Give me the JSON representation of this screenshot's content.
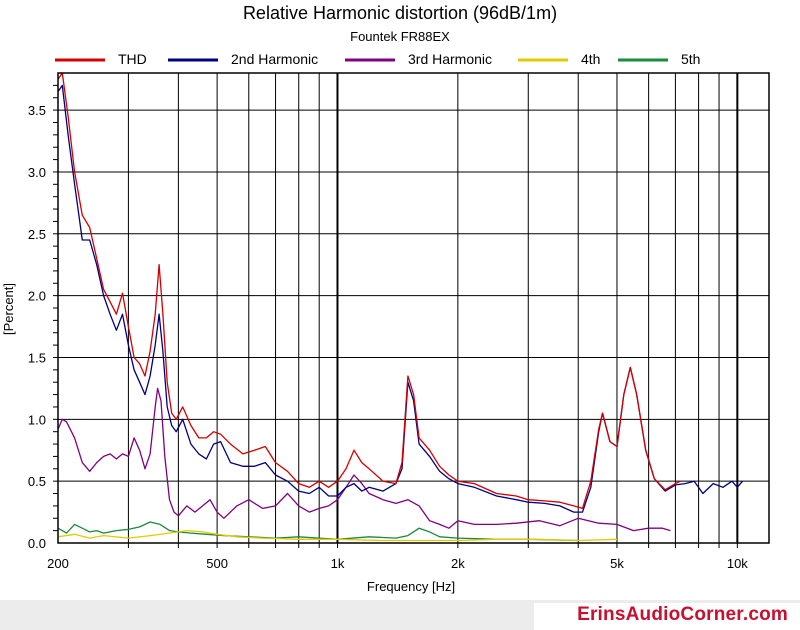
{
  "chart_data": {
    "type": "line",
    "title": "Relative Harmonic distortion (96dB/1m)",
    "subtitle": "Fountek FR88EX",
    "xlabel": "Frequency [Hz]",
    "ylabel": "[Percent]",
    "xscale": "log",
    "xlim": [
      200,
      12000
    ],
    "ylim": [
      0,
      3.8
    ],
    "grid": true,
    "legend_position": "top",
    "x_tick_labels": [
      {
        "value": 200,
        "label": "200"
      },
      {
        "value": 500,
        "label": "500"
      },
      {
        "value": 1000,
        "label": "1k"
      },
      {
        "value": 2000,
        "label": "2k"
      },
      {
        "value": 5000,
        "label": "5k"
      },
      {
        "value": 10000,
        "label": "10k"
      }
    ],
    "y_tick_labels": [
      {
        "value": 0.0,
        "label": "0.0"
      },
      {
        "value": 0.5,
        "label": "0.5"
      },
      {
        "value": 1.0,
        "label": "1.0"
      },
      {
        "value": 1.5,
        "label": "1.5"
      },
      {
        "value": 2.0,
        "label": "2.0"
      },
      {
        "value": 2.5,
        "label": "2.5"
      },
      {
        "value": 3.0,
        "label": "3.0"
      },
      {
        "value": 3.5,
        "label": "3.5"
      }
    ],
    "series": [
      {
        "name": "THD",
        "color": "#d40000",
        "points": [
          [
            200,
            3.75
          ],
          [
            205,
            3.8
          ],
          [
            212,
            3.45
          ],
          [
            220,
            3.0
          ],
          [
            230,
            2.65
          ],
          [
            240,
            2.55
          ],
          [
            250,
            2.3
          ],
          [
            260,
            2.05
          ],
          [
            270,
            1.95
          ],
          [
            280,
            1.85
          ],
          [
            290,
            2.02
          ],
          [
            300,
            1.75
          ],
          [
            310,
            1.5
          ],
          [
            320,
            1.45
          ],
          [
            330,
            1.35
          ],
          [
            340,
            1.55
          ],
          [
            350,
            1.85
          ],
          [
            358,
            2.25
          ],
          [
            366,
            1.85
          ],
          [
            375,
            1.3
          ],
          [
            385,
            1.05
          ],
          [
            395,
            1.0
          ],
          [
            410,
            1.1
          ],
          [
            430,
            0.95
          ],
          [
            450,
            0.85
          ],
          [
            470,
            0.85
          ],
          [
            490,
            0.9
          ],
          [
            510,
            0.88
          ],
          [
            540,
            0.8
          ],
          [
            580,
            0.72
          ],
          [
            620,
            0.75
          ],
          [
            660,
            0.78
          ],
          [
            700,
            0.65
          ],
          [
            750,
            0.58
          ],
          [
            800,
            0.48
          ],
          [
            850,
            0.45
          ],
          [
            900,
            0.5
          ],
          [
            950,
            0.45
          ],
          [
            1000,
            0.5
          ],
          [
            1050,
            0.6
          ],
          [
            1100,
            0.75
          ],
          [
            1150,
            0.65
          ],
          [
            1200,
            0.6
          ],
          [
            1300,
            0.5
          ],
          [
            1400,
            0.48
          ],
          [
            1450,
            0.65
          ],
          [
            1500,
            1.35
          ],
          [
            1550,
            1.2
          ],
          [
            1600,
            0.85
          ],
          [
            1700,
            0.75
          ],
          [
            1800,
            0.62
          ],
          [
            1900,
            0.55
          ],
          [
            2000,
            0.5
          ],
          [
            2200,
            0.48
          ],
          [
            2500,
            0.4
          ],
          [
            2800,
            0.38
          ],
          [
            3000,
            0.35
          ],
          [
            3300,
            0.34
          ],
          [
            3600,
            0.33
          ],
          [
            3900,
            0.3
          ],
          [
            4100,
            0.28
          ],
          [
            4300,
            0.5
          ],
          [
            4500,
            0.92
          ],
          [
            4600,
            1.05
          ],
          [
            4800,
            0.82
          ],
          [
            5000,
            0.78
          ],
          [
            5200,
            1.2
          ],
          [
            5400,
            1.42
          ],
          [
            5600,
            1.2
          ],
          [
            5900,
            0.75
          ],
          [
            6200,
            0.52
          ],
          [
            6600,
            0.43
          ],
          [
            7000,
            0.48
          ],
          [
            7200,
            0.5
          ]
        ]
      },
      {
        "name": "2nd Harmonic",
        "color": "#000080",
        "points": [
          [
            200,
            3.65
          ],
          [
            205,
            3.7
          ],
          [
            212,
            3.3
          ],
          [
            220,
            2.9
          ],
          [
            230,
            2.45
          ],
          [
            240,
            2.45
          ],
          [
            250,
            2.25
          ],
          [
            260,
            2.0
          ],
          [
            270,
            1.85
          ],
          [
            280,
            1.72
          ],
          [
            290,
            1.85
          ],
          [
            300,
            1.6
          ],
          [
            310,
            1.4
          ],
          [
            320,
            1.3
          ],
          [
            330,
            1.2
          ],
          [
            340,
            1.35
          ],
          [
            350,
            1.6
          ],
          [
            358,
            1.85
          ],
          [
            366,
            1.55
          ],
          [
            375,
            1.1
          ],
          [
            385,
            0.95
          ],
          [
            395,
            0.9
          ],
          [
            410,
            1.0
          ],
          [
            430,
            0.8
          ],
          [
            450,
            0.72
          ],
          [
            470,
            0.68
          ],
          [
            490,
            0.8
          ],
          [
            510,
            0.82
          ],
          [
            540,
            0.65
          ],
          [
            580,
            0.62
          ],
          [
            620,
            0.62
          ],
          [
            660,
            0.65
          ],
          [
            700,
            0.55
          ],
          [
            750,
            0.5
          ],
          [
            800,
            0.42
          ],
          [
            850,
            0.4
          ],
          [
            900,
            0.45
          ],
          [
            950,
            0.38
          ],
          [
            1000,
            0.38
          ],
          [
            1050,
            0.45
          ],
          [
            1100,
            0.48
          ],
          [
            1150,
            0.42
          ],
          [
            1200,
            0.45
          ],
          [
            1300,
            0.42
          ],
          [
            1400,
            0.48
          ],
          [
            1450,
            0.6
          ],
          [
            1500,
            1.3
          ],
          [
            1550,
            1.15
          ],
          [
            1600,
            0.8
          ],
          [
            1700,
            0.7
          ],
          [
            1800,
            0.58
          ],
          [
            1900,
            0.52
          ],
          [
            2000,
            0.48
          ],
          [
            2200,
            0.45
          ],
          [
            2500,
            0.38
          ],
          [
            2800,
            0.35
          ],
          [
            3000,
            0.33
          ],
          [
            3300,
            0.32
          ],
          [
            3600,
            0.3
          ],
          [
            3900,
            0.25
          ],
          [
            4100,
            0.25
          ],
          [
            4300,
            0.45
          ],
          [
            4500,
            0.9
          ],
          [
            4600,
            1.05
          ],
          [
            4800,
            0.82
          ],
          [
            5000,
            0.78
          ],
          [
            5200,
            1.2
          ],
          [
            5400,
            1.42
          ],
          [
            5600,
            1.2
          ],
          [
            5900,
            0.75
          ],
          [
            6200,
            0.52
          ],
          [
            6600,
            0.42
          ],
          [
            7000,
            0.47
          ],
          [
            7400,
            0.48
          ],
          [
            7800,
            0.5
          ],
          [
            8200,
            0.4
          ],
          [
            8700,
            0.48
          ],
          [
            9200,
            0.45
          ],
          [
            9700,
            0.5
          ],
          [
            10000,
            0.45
          ],
          [
            10300,
            0.5
          ]
        ]
      },
      {
        "name": "3rd Harmonic",
        "color": "#800080",
        "points": [
          [
            200,
            0.92
          ],
          [
            205,
            1.0
          ],
          [
            210,
            0.98
          ],
          [
            220,
            0.85
          ],
          [
            230,
            0.65
          ],
          [
            240,
            0.58
          ],
          [
            250,
            0.65
          ],
          [
            260,
            0.7
          ],
          [
            270,
            0.72
          ],
          [
            280,
            0.68
          ],
          [
            290,
            0.72
          ],
          [
            300,
            0.7
          ],
          [
            310,
            0.85
          ],
          [
            320,
            0.75
          ],
          [
            330,
            0.6
          ],
          [
            340,
            0.72
          ],
          [
            350,
            1.1
          ],
          [
            355,
            1.25
          ],
          [
            362,
            1.15
          ],
          [
            370,
            0.7
          ],
          [
            380,
            0.35
          ],
          [
            390,
            0.25
          ],
          [
            400,
            0.22
          ],
          [
            420,
            0.3
          ],
          [
            440,
            0.25
          ],
          [
            460,
            0.3
          ],
          [
            480,
            0.35
          ],
          [
            500,
            0.25
          ],
          [
            520,
            0.2
          ],
          [
            560,
            0.3
          ],
          [
            600,
            0.35
          ],
          [
            650,
            0.28
          ],
          [
            700,
            0.3
          ],
          [
            750,
            0.4
          ],
          [
            800,
            0.3
          ],
          [
            850,
            0.25
          ],
          [
            900,
            0.28
          ],
          [
            950,
            0.3
          ],
          [
            1000,
            0.35
          ],
          [
            1050,
            0.45
          ],
          [
            1100,
            0.55
          ],
          [
            1150,
            0.48
          ],
          [
            1200,
            0.4
          ],
          [
            1300,
            0.35
          ],
          [
            1400,
            0.32
          ],
          [
            1500,
            0.35
          ],
          [
            1600,
            0.3
          ],
          [
            1700,
            0.18
          ],
          [
            1800,
            0.15
          ],
          [
            1900,
            0.12
          ],
          [
            2000,
            0.18
          ],
          [
            2200,
            0.15
          ],
          [
            2500,
            0.15
          ],
          [
            2800,
            0.16
          ],
          [
            3200,
            0.18
          ],
          [
            3600,
            0.14
          ],
          [
            4000,
            0.2
          ],
          [
            4500,
            0.16
          ],
          [
            5000,
            0.15
          ],
          [
            5500,
            0.1
          ],
          [
            6000,
            0.12
          ],
          [
            6500,
            0.12
          ],
          [
            6800,
            0.1
          ]
        ]
      },
      {
        "name": "4th",
        "color": "#e6c800",
        "points": [
          [
            200,
            0.05
          ],
          [
            220,
            0.07
          ],
          [
            240,
            0.04
          ],
          [
            260,
            0.06
          ],
          [
            300,
            0.04
          ],
          [
            340,
            0.06
          ],
          [
            380,
            0.08
          ],
          [
            420,
            0.1
          ],
          [
            460,
            0.09
          ],
          [
            500,
            0.07
          ],
          [
            560,
            0.05
          ],
          [
            650,
            0.04
          ],
          [
            800,
            0.03
          ],
          [
            1000,
            0.03
          ],
          [
            1300,
            0.02
          ],
          [
            1600,
            0.02
          ],
          [
            2000,
            0.02
          ],
          [
            2500,
            0.03
          ],
          [
            3200,
            0.03
          ],
          [
            4000,
            0.02
          ],
          [
            5000,
            0.03
          ]
        ]
      },
      {
        "name": "5th",
        "color": "#1a8a3c",
        "points": [
          [
            200,
            0.12
          ],
          [
            210,
            0.08
          ],
          [
            220,
            0.15
          ],
          [
            230,
            0.12
          ],
          [
            240,
            0.09
          ],
          [
            250,
            0.1
          ],
          [
            260,
            0.08
          ],
          [
            280,
            0.1
          ],
          [
            300,
            0.11
          ],
          [
            320,
            0.13
          ],
          [
            340,
            0.17
          ],
          [
            360,
            0.15
          ],
          [
            380,
            0.1
          ],
          [
            400,
            0.09
          ],
          [
            430,
            0.08
          ],
          [
            470,
            0.07
          ],
          [
            520,
            0.06
          ],
          [
            600,
            0.05
          ],
          [
            700,
            0.04
          ],
          [
            800,
            0.05
          ],
          [
            900,
            0.04
          ],
          [
            1000,
            0.03
          ],
          [
            1200,
            0.05
          ],
          [
            1400,
            0.04
          ],
          [
            1500,
            0.06
          ],
          [
            1600,
            0.12
          ],
          [
            1700,
            0.09
          ],
          [
            1800,
            0.05
          ],
          [
            2000,
            0.04
          ],
          [
            2500,
            0.03
          ],
          [
            3000,
            0.03
          ],
          [
            4000,
            0.02
          ]
        ]
      }
    ]
  },
  "branding": {
    "watermark": "ErinsAudioCorner.com"
  }
}
